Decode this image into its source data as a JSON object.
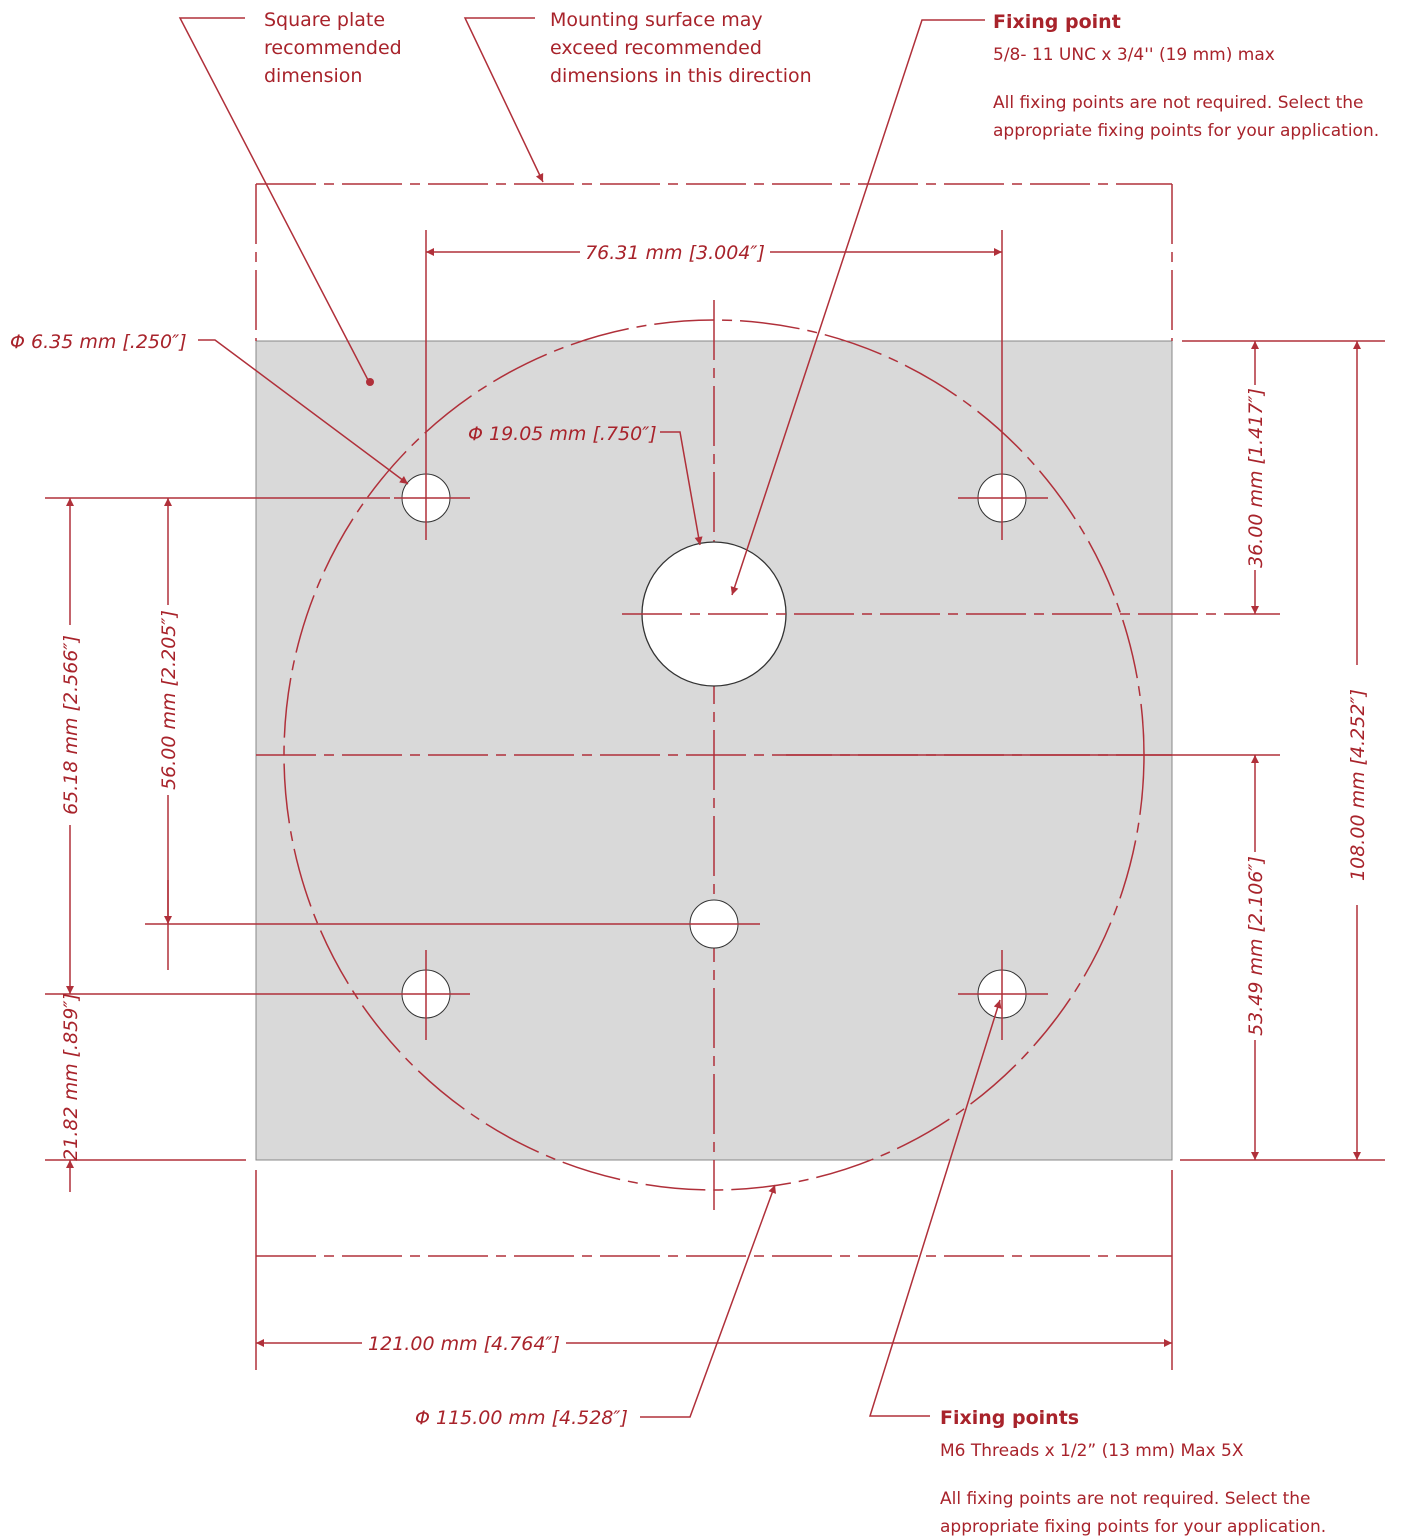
{
  "callouts": {
    "plate": [
      "Square plate",
      "recommended",
      "dimension"
    ],
    "surface": [
      "Mounting surface may",
      "exceed recommended",
      "dimensions in this direction"
    ],
    "fixing_point": {
      "title": "Fixing point",
      "spec": "5/8- 11 UNC x 3/4'' (19 mm) max",
      "note": [
        "All fixing points are not required. Select the",
        "appropriate fixing points for your application."
      ]
    },
    "fixing_points": {
      "title": "Fixing points",
      "spec": "M6 Threads x 1/2” (13 mm) Max 5X",
      "note": [
        "All fixing points are not required. Select the",
        "appropriate fixing points for your application."
      ]
    }
  },
  "dimensions": {
    "hole_spacing_x": "76.31 mm [3.004″]",
    "small_hole_dia": "Φ 6.35 mm [.250″]",
    "center_hole_dia": "Φ 19.05 mm [.750″]",
    "bolt_circle_dia": "Φ 115.00 mm [4.528″]",
    "plate_width": "121.00 mm [4.764″]",
    "top_to_center": "36.00 mm [1.417″]",
    "mid_to_bottom": "53.49 mm [2.106″]",
    "plate_height": "108.00 mm [4.252″]",
    "hole_spacing_y": "65.18 mm [2.566″]",
    "hole_to_center_hole": "56.00 mm [2.205″]",
    "hole_to_edge": "21.82 mm [.859″]"
  }
}
